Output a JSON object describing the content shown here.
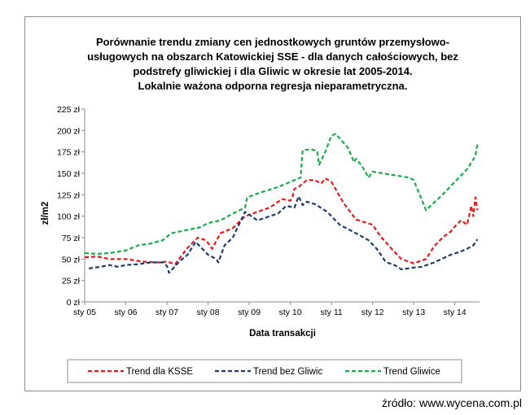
{
  "source_label": "źródło: www.wycena.com.pl",
  "chart_data": {
    "type": "line",
    "title": [
      "Porównanie trendu zmiany cen jednostkowych gruntów przemysłowo-",
      "usługowych na obszarch  Katowickiej SSE - dla danych całościowych, bez",
      "podstrefy gliwickiej i dla Gliwic w okresie lat 2005-2014.",
      "Lokalnie ważona odporna regresja nieparametryczna."
    ],
    "xlabel": "Data transakcji",
    "ylabel": "zł/m2",
    "xlim": [
      2005.0,
      2014.6
    ],
    "ylim": [
      0,
      225
    ],
    "y_ticks": [
      0,
      25,
      50,
      75,
      100,
      125,
      150,
      175,
      200,
      225
    ],
    "y_tick_labels": [
      "0 zł",
      "25 zł",
      "50 zł",
      "75 zł",
      "100 zł",
      "125 zł",
      "150 zł",
      "175 zł",
      "200 zł",
      "225 zł"
    ],
    "x_ticks": [
      2005,
      2006,
      2007,
      2008,
      2009,
      2010,
      2011,
      2012,
      2013,
      2014
    ],
    "x_tick_labels": [
      "sty 05",
      "sty 06",
      "sty 07",
      "sty 08",
      "sty 09",
      "sty 10",
      "sty 11",
      "sty 12",
      "sty 13",
      "sty 14"
    ],
    "legend_position": "bottom",
    "series": [
      {
        "name": "Trend dla KSSE",
        "color": "#e8191a",
        "x": [
          2005.0,
          2005.3,
          2005.6,
          2006.0,
          2006.4,
          2006.8,
          2007.0,
          2007.2,
          2007.5,
          2007.75,
          2007.95,
          2008.1,
          2008.3,
          2008.6,
          2008.9,
          2009.2,
          2009.5,
          2009.8,
          2010.0,
          2010.05,
          2010.1,
          2010.2,
          2010.4,
          2010.6,
          2010.75,
          2010.85,
          2011.0,
          2011.3,
          2011.6,
          2012.0,
          2012.2,
          2012.5,
          2012.7,
          2013.0,
          2013.3,
          2013.5,
          2013.7,
          2013.9,
          2014.0,
          2014.15,
          2014.3,
          2014.4,
          2014.45,
          2014.5,
          2014.55
        ],
        "y": [
          52,
          53,
          50,
          50,
          47,
          46,
          47,
          44,
          63,
          75,
          72,
          62,
          80,
          86,
          100,
          105,
          110,
          120,
          118,
          122,
          132,
          134,
          142,
          142,
          138,
          144,
          140,
          115,
          96,
          90,
          76,
          60,
          50,
          45,
          50,
          65,
          75,
          82,
          88,
          95,
          90,
          112,
          100,
          122,
          107
        ]
      },
      {
        "name": "Trend bez Gliwic",
        "color": "#1f3b6e",
        "x": [
          2005.1,
          2005.4,
          2005.6,
          2005.8,
          2006.0,
          2006.3,
          2006.6,
          2006.9,
          2007.0,
          2007.05,
          2007.3,
          2007.5,
          2007.7,
          2007.9,
          2008.0,
          2008.2,
          2008.25,
          2008.4,
          2008.6,
          2008.9,
          2009.2,
          2009.5,
          2009.7,
          2009.9,
          2010.1,
          2010.2,
          2010.3,
          2010.4,
          2010.6,
          2010.9,
          2011.2,
          2011.6,
          2011.9,
          2012.1,
          2012.3,
          2012.4,
          2012.5,
          2012.7,
          2013.0,
          2013.2,
          2013.5,
          2013.9,
          2014.1,
          2014.3,
          2014.45,
          2014.55
        ],
        "y": [
          39,
          41,
          43,
          41,
          43,
          44,
          46,
          46,
          42,
          34,
          47,
          55,
          70,
          60,
          55,
          50,
          46,
          66,
          75,
          105,
          95,
          100,
          103,
          112,
          110,
          123,
          113,
          117,
          114,
          105,
          90,
          80,
          72,
          62,
          48,
          45,
          44,
          38,
          40,
          41,
          46,
          55,
          58,
          62,
          66,
          73
        ]
      },
      {
        "name": "Trend Gliwice",
        "color": "#1bab4b",
        "x": [
          2005.0,
          2005.3,
          2005.6,
          2006.0,
          2006.3,
          2006.6,
          2006.9,
          2007.1,
          2007.3,
          2007.5,
          2007.8,
          2008.0,
          2008.3,
          2008.6,
          2008.9,
          2008.95,
          2009.3,
          2009.7,
          2010.0,
          2010.25,
          2010.3,
          2010.5,
          2010.65,
          2010.7,
          2010.85,
          2011.0,
          2011.1,
          2011.4,
          2011.55,
          2011.6,
          2011.75,
          2011.9,
          2012.0,
          2012.5,
          2012.9,
          2013.0,
          2013.3,
          2013.7,
          2014.0,
          2014.3,
          2014.5,
          2014.55
        ],
        "y": [
          57,
          56,
          57,
          60,
          66,
          68,
          72,
          80,
          82,
          84,
          87,
          92,
          95,
          103,
          110,
          122,
          128,
          134,
          140,
          145,
          177,
          178,
          176,
          160,
          175,
          194,
          196,
          180,
          163,
          167,
          158,
          145,
          152,
          148,
          145,
          142,
          107,
          125,
          140,
          155,
          170,
          185
        ]
      }
    ]
  }
}
